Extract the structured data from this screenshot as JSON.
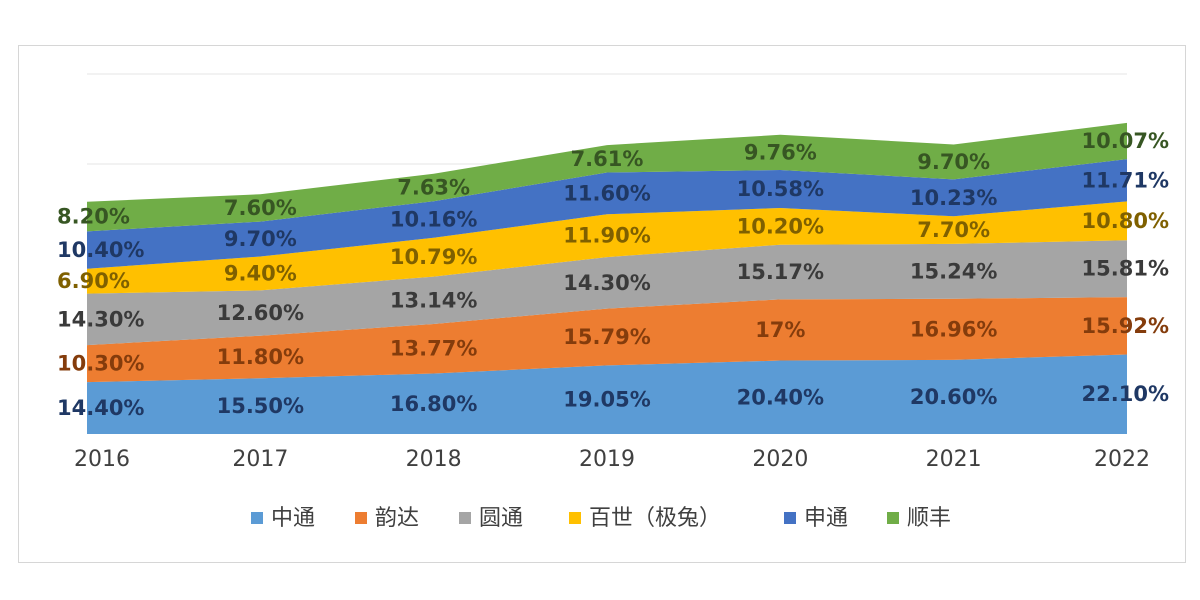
{
  "chart_data": {
    "type": "area",
    "stacked": true,
    "title": "",
    "xlabel": "",
    "ylabel": "",
    "categories": [
      "2016",
      "2017",
      "2018",
      "2019",
      "2020",
      "2021",
      "2022"
    ],
    "ylim": [
      0,
      100
    ],
    "grid": true,
    "legend_position": "bottom",
    "series": [
      {
        "name": "中通",
        "color": "#5b9bd5",
        "values": [
          14.4,
          15.5,
          16.8,
          19.05,
          20.4,
          20.6,
          22.1
        ],
        "labels": [
          "14.40%",
          "15.50%",
          "16.80%",
          "19.05%",
          "20.40%",
          "20.60%",
          "22.10%"
        ],
        "label_color": "#1f3864"
      },
      {
        "name": "韵达",
        "color": "#ed7d31",
        "values": [
          10.3,
          11.8,
          13.77,
          15.79,
          17,
          16.96,
          15.92
        ],
        "labels": [
          "10.30%",
          "11.80%",
          "13.77%",
          "15.79%",
          "17%",
          "16.96%",
          "15.92%"
        ],
        "label_color": "#843c0c"
      },
      {
        "name": "圆通",
        "color": "#a5a5a5",
        "values": [
          14.3,
          12.6,
          13.14,
          14.3,
          15.17,
          15.24,
          15.81
        ],
        "labels": [
          "14.30%",
          "12.60%",
          "13.14%",
          "14.30%",
          "15.17%",
          "15.24%",
          "15.81%"
        ],
        "label_color": "#3a3a3a"
      },
      {
        "name": "百世（极兔）",
        "color": "#ffc000",
        "values": [
          6.9,
          9.4,
          10.79,
          11.9,
          10.2,
          7.7,
          10.8
        ],
        "labels": [
          "6.90%",
          "9.40%",
          "10.79%",
          "11.90%",
          "10.20%",
          "7.70%",
          "10.80%"
        ],
        "label_color": "#7f6000"
      },
      {
        "name": "申通",
        "color": "#4472c4",
        "values": [
          10.4,
          9.7,
          10.16,
          11.6,
          10.58,
          10.23,
          11.71
        ],
        "labels": [
          "10.40%",
          "9.70%",
          "10.16%",
          "11.60%",
          "10.58%",
          "10.23%",
          "11.71%"
        ],
        "label_color": "#1f3864"
      },
      {
        "name": "顺丰",
        "color": "#70ad47",
        "values": [
          8.2,
          7.6,
          7.63,
          7.61,
          9.76,
          9.7,
          10.07
        ],
        "labels": [
          "8.20%",
          "7.60%",
          "7.63%",
          "7.61%",
          "9.76%",
          "9.70%",
          "10.07%"
        ],
        "label_color": "#375623"
      }
    ]
  }
}
